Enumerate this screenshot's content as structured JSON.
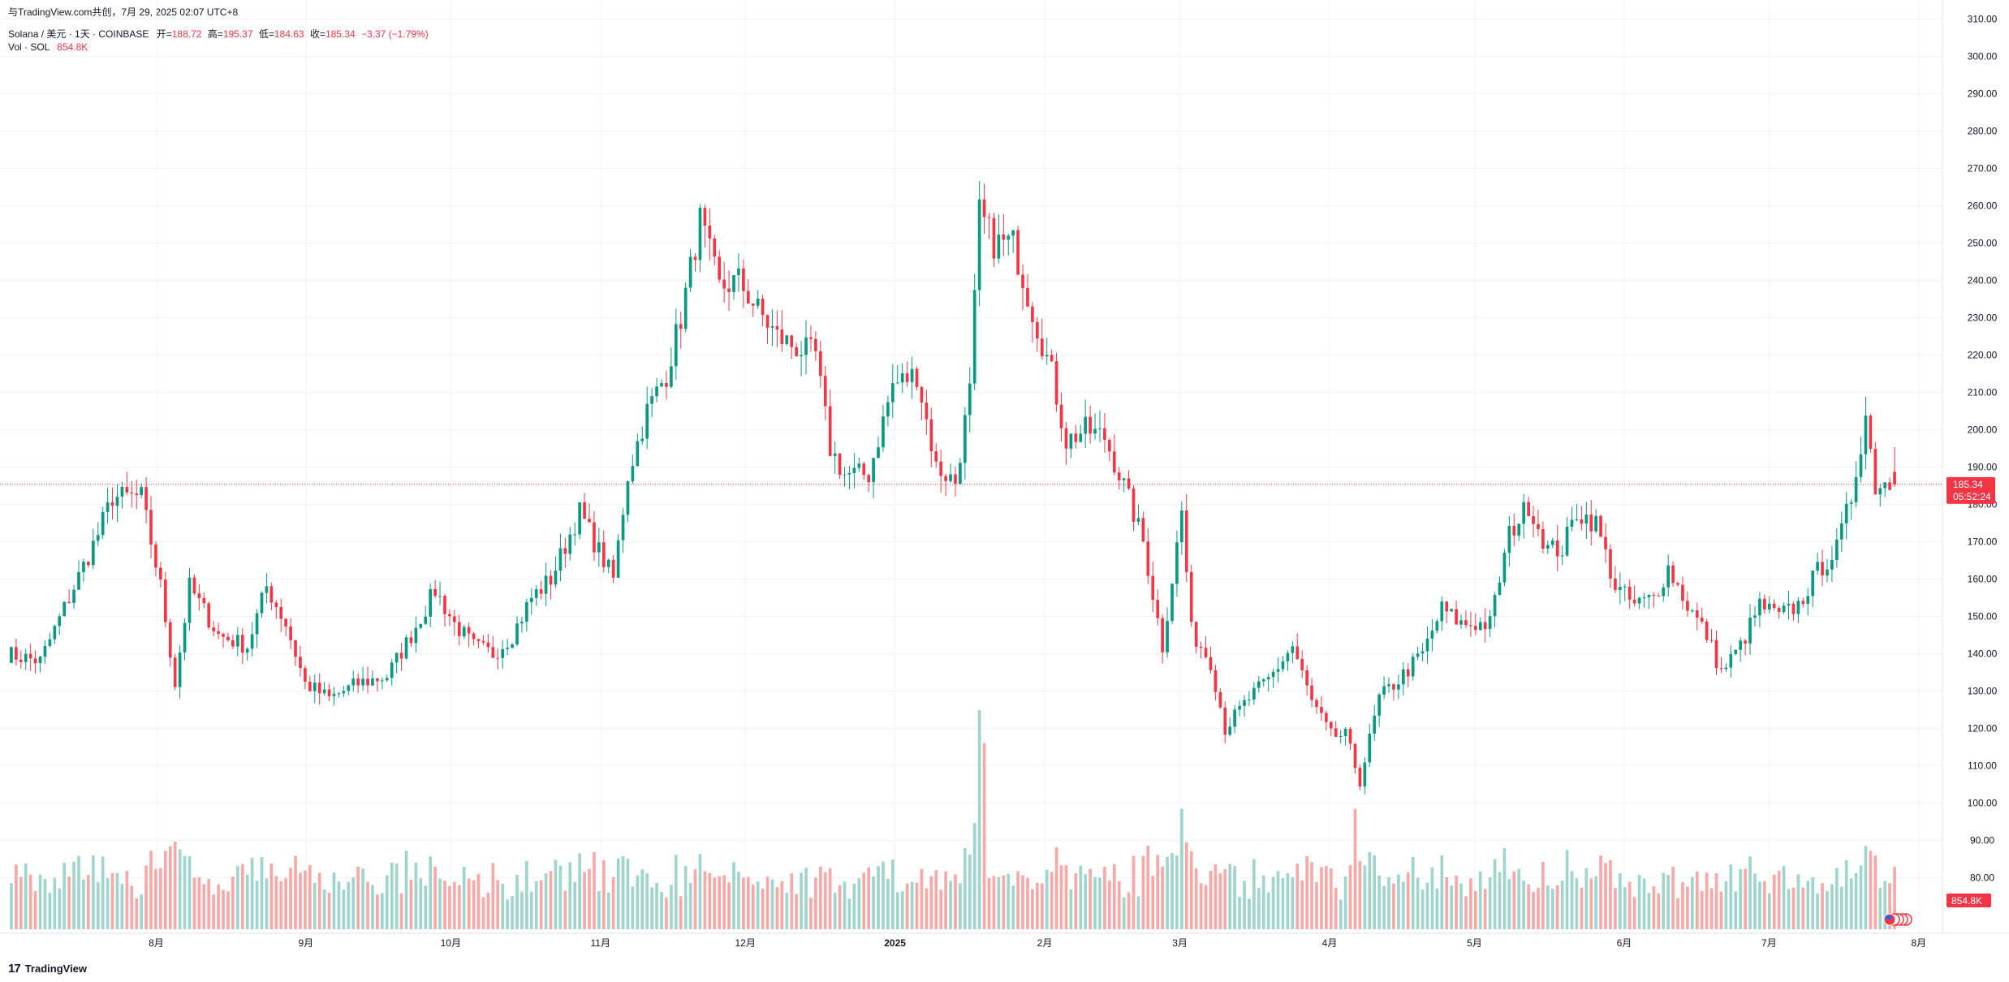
{
  "header": {
    "attribution": "与TradingView.com共创，7月 29, 2025 02:07 UTC+8",
    "symbol": "Solana / 美元 · 1天 · COINBASE",
    "open_label": "开=",
    "open": "188.72",
    "high_label": "高=",
    "high": "195.37",
    "low_label": "低=",
    "low": "184.63",
    "close_label": "收=",
    "close": "185.34",
    "change": "−3.37 (−1.79%)",
    "vol_label": "Vol · SOL",
    "vol_value": "854.8K"
  },
  "brand": {
    "logo_mark": "17",
    "name": "TradingView"
  },
  "price_tag": {
    "price": "185.34",
    "countdown": "05:52:24"
  },
  "volume_tag": "854.8K",
  "colors": {
    "up": "#089981",
    "down": "#f23645",
    "up_vol": "#9fd5cd",
    "down_vol": "#f7a9a7",
    "grid": "#f0f3fa",
    "axis_text": "#131722"
  },
  "chart_data": {
    "type": "candlestick",
    "symbol": "SOL/USD",
    "interval": "1D",
    "x_range": [
      "2024-07-01",
      "2025-07-28"
    ],
    "y_range": [
      75,
      315
    ],
    "y_ticks": [
      "80.00",
      "90.00",
      "100.00",
      "110.00",
      "120.00",
      "130.00",
      "140.00",
      "150.00",
      "160.00",
      "170.00",
      "180.00",
      "190.00",
      "200.00",
      "210.00",
      "220.00",
      "230.00",
      "240.00",
      "250.00",
      "260.00",
      "270.00",
      "280.00",
      "290.00",
      "300.00",
      "310.00"
    ],
    "x_ticks": [
      {
        "label": "8月",
        "date": "2024-08-01"
      },
      {
        "label": "9月",
        "date": "2024-09-01"
      },
      {
        "label": "10月",
        "date": "2024-10-01"
      },
      {
        "label": "11月",
        "date": "2024-11-01"
      },
      {
        "label": "12月",
        "date": "2024-12-01"
      },
      {
        "label": "2025",
        "date": "2025-01-01"
      },
      {
        "label": "2月",
        "date": "2025-02-01"
      },
      {
        "label": "3月",
        "date": "2025-03-01"
      },
      {
        "label": "4月",
        "date": "2025-04-01"
      },
      {
        "label": "5月",
        "date": "2025-05-01"
      },
      {
        "label": "6月",
        "date": "2025-06-01"
      },
      {
        "label": "7月",
        "date": "2025-07-01"
      },
      {
        "label": "8月",
        "date": "2025-08-01"
      }
    ],
    "price_path": [
      {
        "date": "2024-07-01",
        "close": 140
      },
      {
        "date": "2024-07-08",
        "close": 138
      },
      {
        "date": "2024-07-14",
        "close": 155
      },
      {
        "date": "2024-07-20",
        "close": 172
      },
      {
        "date": "2024-07-23",
        "close": 182
      },
      {
        "date": "2024-07-29",
        "close": 182
      },
      {
        "date": "2024-08-02",
        "close": 158
      },
      {
        "date": "2024-08-05",
        "close": 132
      },
      {
        "date": "2024-08-08",
        "close": 158
      },
      {
        "date": "2024-08-14",
        "close": 145
      },
      {
        "date": "2024-08-20",
        "close": 142
      },
      {
        "date": "2024-08-24",
        "close": 158
      },
      {
        "date": "2024-08-28",
        "close": 148
      },
      {
        "date": "2024-09-01",
        "close": 132
      },
      {
        "date": "2024-09-06",
        "close": 128
      },
      {
        "date": "2024-09-12",
        "close": 132
      },
      {
        "date": "2024-09-18",
        "close": 134
      },
      {
        "date": "2024-09-23",
        "close": 145
      },
      {
        "date": "2024-09-28",
        "close": 157
      },
      {
        "date": "2024-10-02",
        "close": 148
      },
      {
        "date": "2024-10-06",
        "close": 142
      },
      {
        "date": "2024-10-10",
        "close": 140
      },
      {
        "date": "2024-10-14",
        "close": 145
      },
      {
        "date": "2024-10-18",
        "close": 155
      },
      {
        "date": "2024-10-22",
        "close": 160
      },
      {
        "date": "2024-10-28",
        "close": 178
      },
      {
        "date": "2024-10-31",
        "close": 170
      },
      {
        "date": "2024-11-04",
        "close": 160
      },
      {
        "date": "2024-11-07",
        "close": 188
      },
      {
        "date": "2024-11-11",
        "close": 205
      },
      {
        "date": "2024-11-15",
        "close": 215
      },
      {
        "date": "2024-11-18",
        "close": 230
      },
      {
        "date": "2024-11-22",
        "close": 256
      },
      {
        "date": "2024-11-26",
        "close": 238
      },
      {
        "date": "2024-11-30",
        "close": 240
      },
      {
        "date": "2024-12-04",
        "close": 232
      },
      {
        "date": "2024-12-08",
        "close": 225
      },
      {
        "date": "2024-12-12",
        "close": 222
      },
      {
        "date": "2024-12-16",
        "close": 220
      },
      {
        "date": "2024-12-19",
        "close": 195
      },
      {
        "date": "2024-12-22",
        "close": 188
      },
      {
        "date": "2024-12-27",
        "close": 188
      },
      {
        "date": "2025-01-01",
        "close": 212
      },
      {
        "date": "2025-01-06",
        "close": 215
      },
      {
        "date": "2025-01-10",
        "close": 190
      },
      {
        "date": "2025-01-14",
        "close": 186
      },
      {
        "date": "2025-01-17",
        "close": 210
      },
      {
        "date": "2025-01-19",
        "close": 258
      },
      {
        "date": "2025-01-22",
        "close": 250
      },
      {
        "date": "2025-01-26",
        "close": 250
      },
      {
        "date": "2025-01-30",
        "close": 232
      },
      {
        "date": "2025-02-03",
        "close": 215
      },
      {
        "date": "2025-02-06",
        "close": 197
      },
      {
        "date": "2025-02-10",
        "close": 200
      },
      {
        "date": "2025-02-14",
        "close": 198
      },
      {
        "date": "2025-02-18",
        "close": 185
      },
      {
        "date": "2025-02-22",
        "close": 170
      },
      {
        "date": "2025-02-26",
        "close": 142
      },
      {
        "date": "2025-03-02",
        "close": 178
      },
      {
        "date": "2025-03-04",
        "close": 146
      },
      {
        "date": "2025-03-08",
        "close": 138
      },
      {
        "date": "2025-03-11",
        "close": 120
      },
      {
        "date": "2025-03-16",
        "close": 128
      },
      {
        "date": "2025-03-20",
        "close": 133
      },
      {
        "date": "2025-03-25",
        "close": 142
      },
      {
        "date": "2025-03-29",
        "close": 127
      },
      {
        "date": "2025-04-02",
        "close": 118
      },
      {
        "date": "2025-04-05",
        "close": 118
      },
      {
        "date": "2025-04-08",
        "close": 106
      },
      {
        "date": "2025-04-12",
        "close": 128
      },
      {
        "date": "2025-04-16",
        "close": 133
      },
      {
        "date": "2025-04-21",
        "close": 140
      },
      {
        "date": "2025-04-25",
        "close": 152
      },
      {
        "date": "2025-04-29",
        "close": 148
      },
      {
        "date": "2025-05-05",
        "close": 148
      },
      {
        "date": "2025-05-09",
        "close": 172
      },
      {
        "date": "2025-05-13",
        "close": 180
      },
      {
        "date": "2025-05-17",
        "close": 168
      },
      {
        "date": "2025-05-20",
        "close": 168
      },
      {
        "date": "2025-05-23",
        "close": 178
      },
      {
        "date": "2025-05-27",
        "close": 175
      },
      {
        "date": "2025-05-31",
        "close": 158
      },
      {
        "date": "2025-06-04",
        "close": 153
      },
      {
        "date": "2025-06-08",
        "close": 155
      },
      {
        "date": "2025-06-11",
        "close": 163
      },
      {
        "date": "2025-06-15",
        "close": 153
      },
      {
        "date": "2025-06-19",
        "close": 145
      },
      {
        "date": "2025-06-22",
        "close": 135
      },
      {
        "date": "2025-06-26",
        "close": 142
      },
      {
        "date": "2025-06-30",
        "close": 153
      },
      {
        "date": "2025-07-04",
        "close": 150
      },
      {
        "date": "2025-07-08",
        "close": 153
      },
      {
        "date": "2025-07-12",
        "close": 162
      },
      {
        "date": "2025-07-16",
        "close": 168
      },
      {
        "date": "2025-07-19",
        "close": 182
      },
      {
        "date": "2025-07-22",
        "close": 204
      },
      {
        "date": "2025-07-24",
        "close": 185
      },
      {
        "date": "2025-07-26",
        "close": 186
      },
      {
        "date": "2025-07-28",
        "close": 185.34
      }
    ],
    "volume_spikes": [
      {
        "date": "2024-08-05",
        "volume_rel": 0.4
      },
      {
        "date": "2025-01-19",
        "volume_rel": 1.0
      },
      {
        "date": "2025-01-20",
        "volume_rel": 0.85
      },
      {
        "date": "2025-03-02",
        "volume_rel": 0.55
      },
      {
        "date": "2025-04-07",
        "volume_rel": 0.55
      },
      {
        "date": "2025-07-22",
        "volume_rel": 0.38
      }
    ],
    "last": {
      "date": "2025-07-28",
      "open": 188.72,
      "high": 195.37,
      "low": 184.63,
      "close": 185.34,
      "volume": "854.8K"
    },
    "grid": true,
    "legend": "top-left"
  }
}
